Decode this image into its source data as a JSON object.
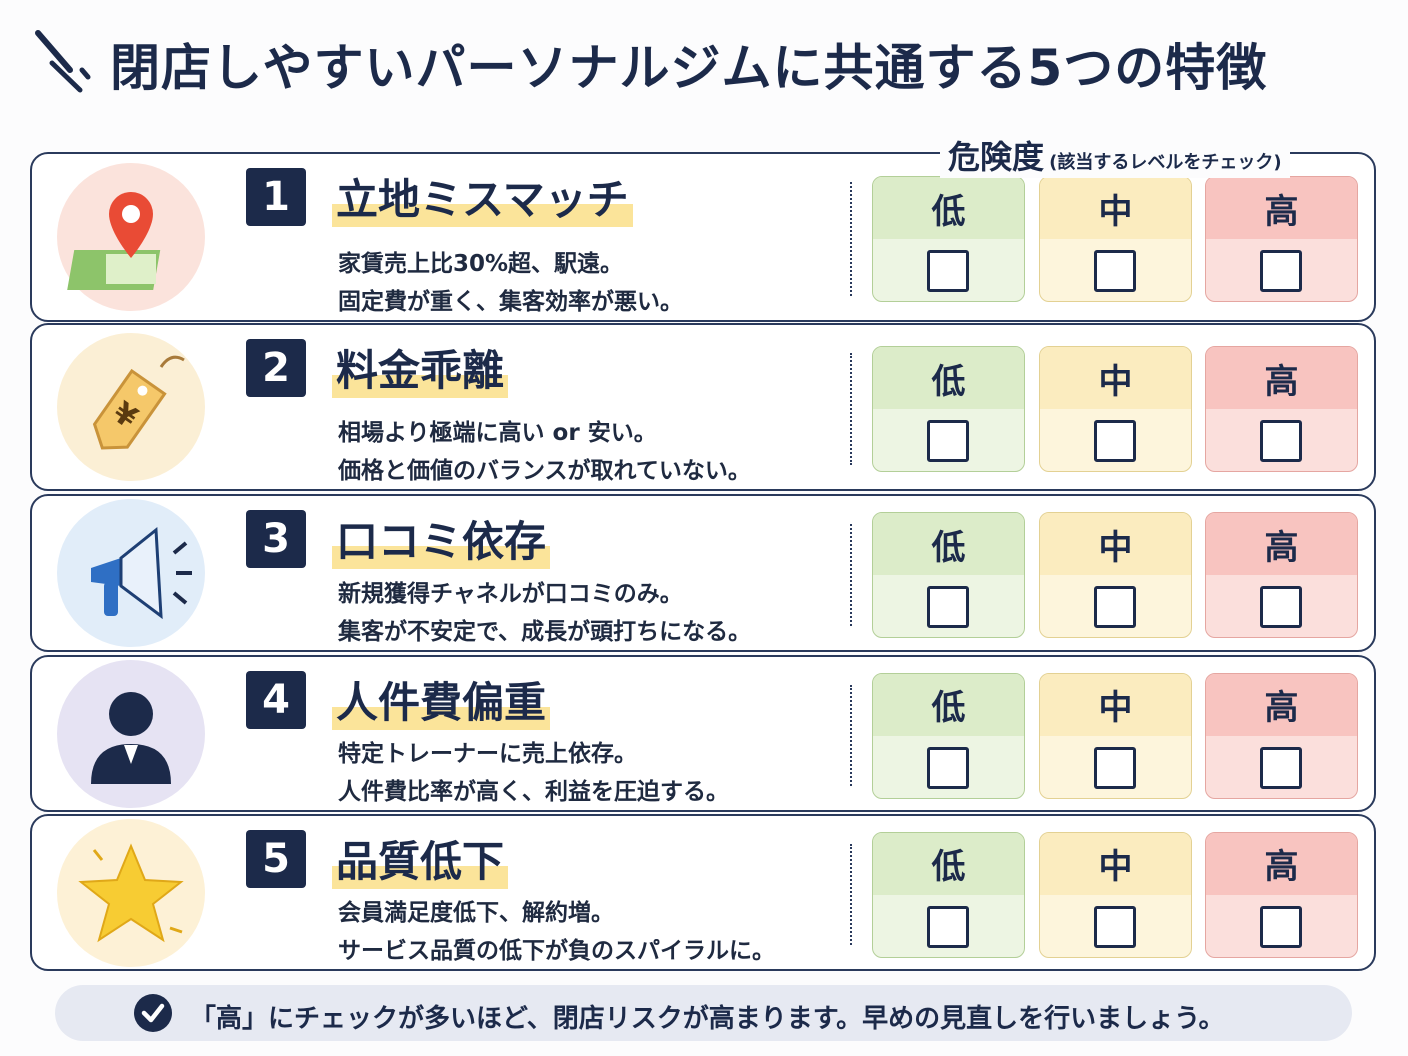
{
  "header": {
    "title": "閉店しやすいパーソナルジムに共通する5つの特徴"
  },
  "risk": {
    "label": "危険度",
    "note": "(該当するレベルをチェック)",
    "levels": [
      "低",
      "中",
      "高"
    ]
  },
  "items": [
    {
      "number": "1",
      "title": "立地ミスマッチ",
      "lines": [
        "家賃売上比30%超、駅遠。",
        "固定費が重く、集客効率が悪い。"
      ]
    },
    {
      "number": "2",
      "title": "料金乖離",
      "lines": [
        "相場より極端に高い or 安い。",
        "価格と価値のバランスが取れていない。"
      ]
    },
    {
      "number": "3",
      "title": "口コミ依存",
      "lines": [
        "新規獲得チャネルが口コミのみ。",
        "集客が不安定で、成長が頭打ちになる。"
      ]
    },
    {
      "number": "4",
      "title": "人件費偏重",
      "lines": [
        "特定トレーナーに売上依存。",
        "人件費比率が高く、利益を圧迫する。"
      ]
    },
    {
      "number": "5",
      "title": "品質低下",
      "lines": [
        "会員満足度低下、解約増。",
        "サービス品質の低下が負のスパイラルに。"
      ]
    }
  ],
  "footer": {
    "text": "「高」にチェックが多いほど、閉店リスクが高まります。早めの見直しを行いましょう。"
  }
}
